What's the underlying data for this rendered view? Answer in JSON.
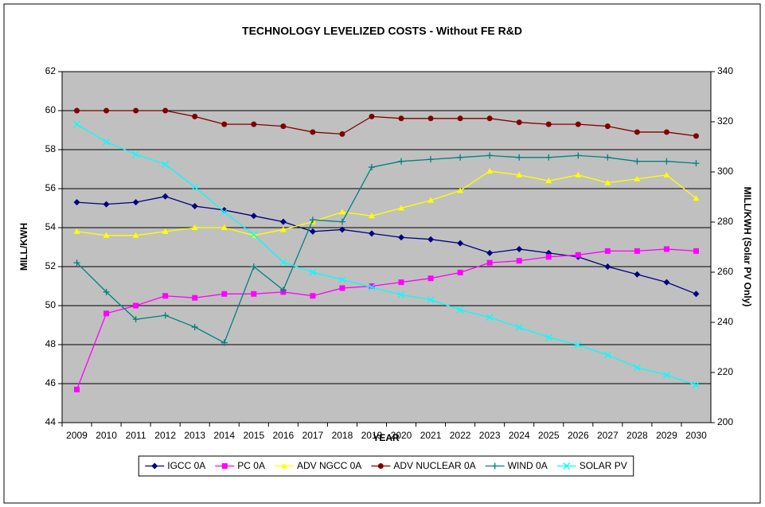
{
  "chart_data": {
    "type": "line",
    "title": "TECHNOLOGY LEVELIZED COSTS - Without FE R&D",
    "x_label": "YEAR",
    "y_label": "MILL/KWH",
    "y2_label": "MILL/KWH (Solar PV Only)",
    "categories": [
      "2009",
      "2010",
      "2011",
      "2012",
      "2013",
      "2014",
      "2015",
      "2016",
      "2017",
      "2018",
      "2019",
      "2020",
      "2021",
      "2022",
      "2023",
      "2024",
      "2025",
      "2026",
      "2027",
      "2028",
      "2029",
      "2030"
    ],
    "ylim": [
      44,
      62
    ],
    "yticks": [
      44,
      46,
      48,
      50,
      52,
      54,
      56,
      58,
      60,
      62
    ],
    "y2lim": [
      200,
      340
    ],
    "y2ticks": [
      200,
      220,
      240,
      260,
      280,
      300,
      320,
      340
    ],
    "grid": true,
    "legend": "bottom",
    "background": "#c0c0c0",
    "series": [
      {
        "name": "IGCC 0A",
        "color": "#000080",
        "marker": "diamond",
        "values": [
          55.3,
          55.2,
          55.3,
          55.6,
          55.1,
          54.9,
          54.6,
          54.3,
          53.8,
          53.9,
          53.7,
          53.5,
          53.4,
          53.2,
          52.7,
          52.9,
          52.7,
          52.5,
          52.0,
          51.6,
          51.2,
          50.6
        ]
      },
      {
        "name": "PC 0A",
        "color": "#ff00ff",
        "marker": "square",
        "values": [
          45.7,
          49.6,
          50.0,
          50.5,
          50.4,
          50.6,
          50.6,
          50.7,
          50.5,
          50.9,
          51.0,
          51.2,
          51.4,
          51.7,
          52.2,
          52.3,
          52.5,
          52.6,
          52.8,
          52.8,
          52.9,
          52.8
        ]
      },
      {
        "name": "ADV NGCC 0A",
        "color": "#ffff00",
        "marker": "triangle",
        "values": [
          53.8,
          53.6,
          53.6,
          53.8,
          54.0,
          54.0,
          53.6,
          53.9,
          54.3,
          54.8,
          54.6,
          55.0,
          55.4,
          55.9,
          56.9,
          56.7,
          56.4,
          56.7,
          56.3,
          56.5,
          56.7,
          55.5
        ]
      },
      {
        "name": "ADV NUCLEAR 0A",
        "color": "#800000",
        "marker": "circle",
        "values": [
          60.0,
          60.0,
          60.0,
          60.0,
          59.7,
          59.3,
          59.3,
          59.2,
          58.9,
          58.8,
          59.7,
          59.6,
          59.6,
          59.6,
          59.6,
          59.4,
          59.3,
          59.3,
          59.2,
          58.9,
          58.9,
          58.7
        ]
      },
      {
        "name": "WIND 0A",
        "color": "#008080",
        "marker": "plus",
        "values": [
          52.2,
          50.7,
          49.3,
          49.5,
          48.9,
          48.1,
          52.0,
          50.8,
          54.4,
          54.3,
          57.1,
          57.4,
          57.5,
          57.6,
          57.7,
          57.6,
          57.6,
          57.7,
          57.6,
          57.4,
          57.4,
          57.3
        ]
      },
      {
        "name": "SOLAR PV",
        "color": "#00ffff",
        "marker": "x",
        "axis": "y2",
        "values": [
          319,
          312,
          307,
          303,
          294,
          284,
          275,
          264,
          260,
          257,
          254,
          251,
          249,
          245,
          242,
          238,
          234,
          231,
          227,
          222,
          219,
          215
        ]
      }
    ]
  }
}
